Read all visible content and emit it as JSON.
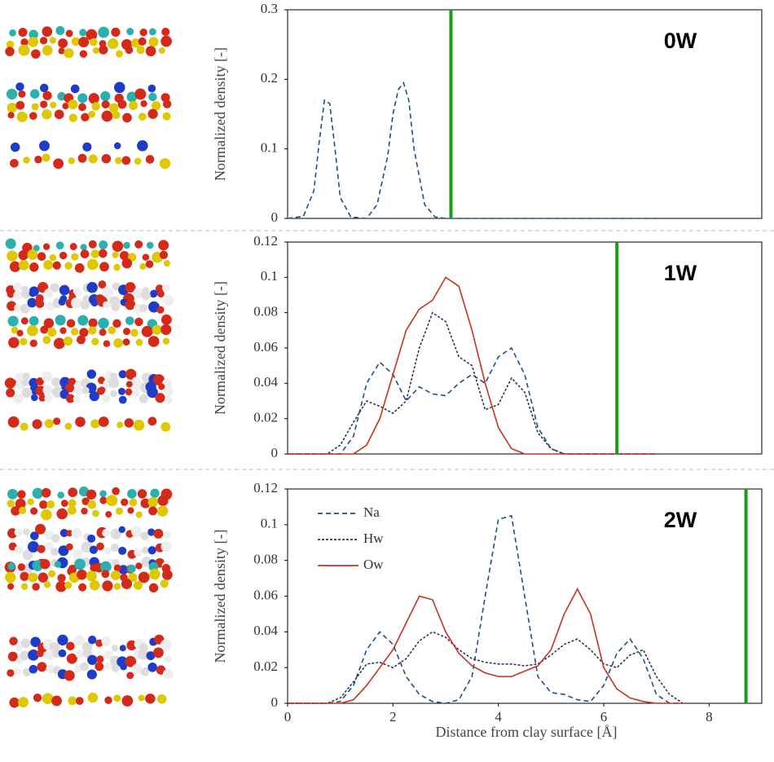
{
  "chart_data": [
    {
      "type": "line",
      "ylabel": "Normalized density [-]",
      "annotation": "0W",
      "x": [
        0,
        0.3,
        0.5,
        0.6,
        0.7,
        0.8,
        0.9,
        1.0,
        1.2,
        1.5,
        1.7,
        1.9,
        2.0,
        2.1,
        2.2,
        2.3,
        2.4,
        2.6,
        2.8,
        3.0,
        4,
        5,
        6,
        7
      ],
      "series": [
        {
          "color": "#1f4e8c",
          "dash": "6,4",
          "values": [
            0,
            0.003,
            0.04,
            0.11,
            0.17,
            0.165,
            0.1,
            0.03,
            0.002,
            0,
            0.02,
            0.09,
            0.15,
            0.185,
            0.195,
            0.17,
            0.1,
            0.02,
            0.002,
            0,
            0,
            0,
            0,
            0
          ]
        }
      ],
      "xlim": [
        0,
        9
      ],
      "ylim": [
        0,
        0.3
      ],
      "yticks": [
        0,
        0.1,
        0.2,
        0.3
      ],
      "vline": 3.1,
      "vline_color": "#1e9a1e"
    },
    {
      "type": "line",
      "ylabel": "Normalized density [-]",
      "annotation": "1W",
      "x": [
        0,
        0.25,
        0.5,
        0.75,
        1,
        1.25,
        1.5,
        1.75,
        2,
        2.25,
        2.5,
        2.75,
        3,
        3.25,
        3.5,
        3.75,
        4,
        4.25,
        4.5,
        4.75,
        5,
        5.25,
        5.5,
        5.75,
        6,
        6.25,
        6.5,
        6.75,
        7
      ],
      "series": [
        {
          "color": "#1f4e8c",
          "dash": "6,4",
          "values": [
            0,
            0,
            0,
            0,
            0,
            0.01,
            0.04,
            0.052,
            0.045,
            0.03,
            0.038,
            0.034,
            0.033,
            0.04,
            0.045,
            0.04,
            0.055,
            0.06,
            0.045,
            0.015,
            0.003,
            0,
            0,
            0,
            0,
            0,
            0,
            0,
            0
          ]
        },
        {
          "color": "#2b3a55",
          "dash": "3,2",
          "values": [
            0,
            0,
            0,
            0,
            0.005,
            0.018,
            0.03,
            0.027,
            0.023,
            0.03,
            0.06,
            0.08,
            0.075,
            0.055,
            0.05,
            0.025,
            0.028,
            0.043,
            0.035,
            0.012,
            0.003,
            0,
            0,
            0,
            0,
            0,
            0,
            0,
            0
          ]
        },
        {
          "color": "#c8321e",
          "dash": "",
          "values": [
            0,
            0,
            0,
            0,
            0,
            0,
            0.005,
            0.02,
            0.045,
            0.07,
            0.082,
            0.087,
            0.1,
            0.095,
            0.07,
            0.04,
            0.015,
            0.003,
            0,
            0,
            0,
            0,
            0,
            0,
            0,
            0,
            0,
            0,
            0
          ]
        }
      ],
      "xlim": [
        0,
        9
      ],
      "ylim": [
        0,
        0.12
      ],
      "yticks": [
        0,
        0.02,
        0.04,
        0.06,
        0.08,
        0.1,
        0.12
      ],
      "vline": 6.25,
      "vline_color": "#1e9a1e"
    },
    {
      "type": "line",
      "ylabel": "Normalized density [-]",
      "annotation": "2W",
      "xlabel": "Distance from clay surface [Å]",
      "x": [
        0,
        0.25,
        0.5,
        0.75,
        1,
        1.25,
        1.5,
        1.75,
        2,
        2.25,
        2.5,
        2.75,
        3,
        3.25,
        3.5,
        3.75,
        4,
        4.25,
        4.5,
        4.75,
        5,
        5.25,
        5.5,
        5.75,
        6,
        6.25,
        6.5,
        6.75,
        7,
        7.25,
        7.5
      ],
      "series": [
        {
          "name": "Na",
          "color": "#1f4e8c",
          "dash": "6,4",
          "values": [
            0,
            0,
            0,
            0,
            0.001,
            0.01,
            0.03,
            0.04,
            0.033,
            0.015,
            0.005,
            0.001,
            0,
            0.002,
            0.015,
            0.06,
            0.103,
            0.105,
            0.06,
            0.015,
            0.006,
            0.005,
            0.002,
            0.001,
            0.01,
            0.028,
            0.036,
            0.025,
            0.005,
            0,
            0
          ]
        },
        {
          "name": "Hw",
          "color": "#2b3a55",
          "dash": "3,2",
          "values": [
            0,
            0,
            0,
            0,
            0.003,
            0.012,
            0.022,
            0.023,
            0.02,
            0.025,
            0.035,
            0.04,
            0.037,
            0.03,
            0.025,
            0.023,
            0.022,
            0.022,
            0.021,
            0.022,
            0.027,
            0.033,
            0.036,
            0.03,
            0.022,
            0.02,
            0.027,
            0.03,
            0.015,
            0.005,
            0
          ]
        },
        {
          "name": "Ow",
          "color": "#c8321e",
          "dash": "",
          "values": [
            0,
            0,
            0,
            0,
            0,
            0.002,
            0.01,
            0.02,
            0.03,
            0.045,
            0.06,
            0.058,
            0.04,
            0.028,
            0.021,
            0.017,
            0.015,
            0.015,
            0.018,
            0.021,
            0.03,
            0.05,
            0.064,
            0.05,
            0.02,
            0.008,
            0.003,
            0.001,
            0,
            0,
            0
          ]
        }
      ],
      "xlim": [
        0,
        9
      ],
      "xticks": [
        0,
        2,
        4,
        6,
        8
      ],
      "ylim": [
        0,
        0.12
      ],
      "yticks": [
        0,
        0.02,
        0.04,
        0.06,
        0.08,
        0.1,
        0.12
      ],
      "vline": 8.7,
      "vline_color": "#1e9a1e",
      "legend": true
    }
  ]
}
